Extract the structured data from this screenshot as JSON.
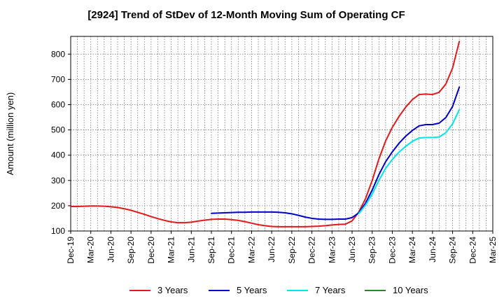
{
  "chart_data": {
    "type": "line",
    "title": "[2924]  Trend of StDev of 12-Month Moving Sum of Operating CF",
    "ylabel": "Amount (million yen)",
    "xlabel": "",
    "ylim": [
      100,
      870
    ],
    "yticks": [
      100,
      200,
      300,
      400,
      500,
      600,
      700,
      800
    ],
    "x_tick_labels": [
      "Dec-19",
      "Mar-20",
      "Jun-20",
      "Sep-20",
      "Dec-20",
      "Mar-21",
      "Jun-21",
      "Sep-21",
      "Dec-21",
      "Mar-22",
      "Jun-22",
      "Sep-22",
      "Dec-22",
      "Mar-23",
      "Jun-23",
      "Sep-23",
      "Dec-23",
      "Mar-24",
      "Jun-24",
      "Sep-24",
      "Dec-24",
      "Mar-25"
    ],
    "grid": true,
    "legend_position": "bottom",
    "series": [
      {
        "name": "3 Years",
        "color": "#e31a1c",
        "values": [
          197,
          197,
          198,
          199,
          199,
          198,
          196,
          193,
          188,
          182,
          174,
          166,
          157,
          149,
          142,
          136,
          133,
          133,
          135,
          139,
          143,
          146,
          147,
          147,
          145,
          142,
          137,
          131,
          125,
          121,
          118,
          117,
          117,
          117,
          117,
          117,
          118,
          119,
          121,
          124,
          126,
          127,
          140,
          175,
          228,
          300,
          385,
          456,
          510,
          553,
          590,
          620,
          640,
          642,
          640,
          649,
          682,
          745,
          850
        ]
      },
      {
        "name": "5 Years",
        "color": "#0000cc",
        "values": [
          null,
          null,
          null,
          null,
          null,
          null,
          null,
          null,
          null,
          null,
          null,
          null,
          null,
          null,
          null,
          null,
          null,
          null,
          null,
          null,
          null,
          170,
          171,
          172,
          173,
          174,
          174,
          175,
          175,
          175,
          175,
          174,
          172,
          168,
          162,
          155,
          150,
          147,
          146,
          146,
          147,
          147,
          153,
          172,
          210,
          262,
          323,
          374,
          413,
          447,
          475,
          498,
          516,
          521,
          521,
          527,
          549,
          593,
          669
        ]
      },
      {
        "name": "7 Years",
        "color": "#00e5ee",
        "values": [
          null,
          null,
          null,
          null,
          null,
          null,
          null,
          null,
          null,
          null,
          null,
          null,
          null,
          null,
          null,
          null,
          null,
          null,
          null,
          null,
          null,
          null,
          null,
          null,
          null,
          null,
          null,
          null,
          null,
          null,
          null,
          null,
          null,
          null,
          null,
          null,
          null,
          null,
          null,
          null,
          null,
          null,
          null,
          169,
          202,
          246,
          300,
          348,
          383,
          412,
          435,
          455,
          468,
          470,
          470,
          472,
          489,
          524,
          580
        ]
      },
      {
        "name": "10 Years",
        "color": "#228b22",
        "values": []
      }
    ]
  }
}
